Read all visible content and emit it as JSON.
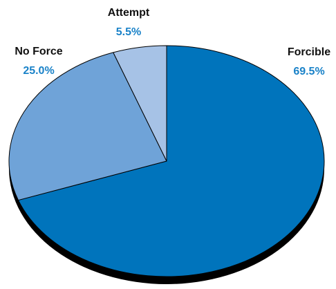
{
  "chart_data": {
    "type": "pie",
    "style": "3d",
    "title": "",
    "slices": [
      {
        "label": "Forcible",
        "value": 69.5,
        "value_label": "69.5%",
        "color": "#0074BC"
      },
      {
        "label": "No Force",
        "value": 25.0,
        "value_label": "25.0%",
        "color": "#6FA3D8"
      },
      {
        "label": "Attempt",
        "value": 5.5,
        "value_label": "5.5%",
        "color": "#A6C2E6"
      }
    ],
    "label_color": "#111111",
    "value_color": "#1A82C8",
    "depth_color": "#000000",
    "outline_color": "#000000",
    "legend": "none"
  }
}
